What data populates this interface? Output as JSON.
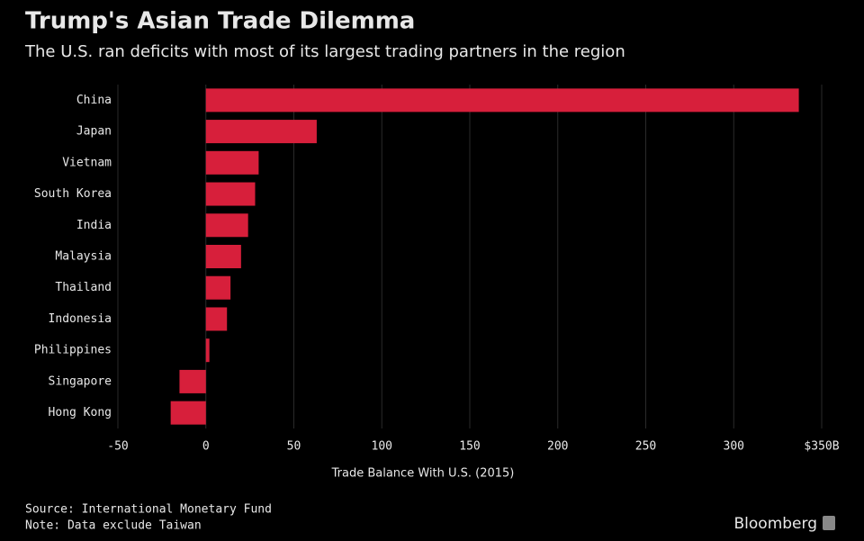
{
  "chart_data": {
    "type": "barh",
    "title": "Trump's Asian Trade Dilemma",
    "subtitle": "The U.S. ran deficits with most of its largest trading partners in the region",
    "categories": [
      "China",
      "Japan",
      "Vietnam",
      "South Korea",
      "India",
      "Malaysia",
      "Thailand",
      "Indonesia",
      "Philippines",
      "Singapore",
      "Hong Kong"
    ],
    "values": [
      337,
      63,
      30,
      28,
      24,
      20,
      14,
      12,
      2,
      -15,
      -20
    ],
    "color": "#d71f3b",
    "xlim": [
      -50,
      350
    ],
    "xticks": [
      -50,
      0,
      50,
      100,
      150,
      200,
      250,
      300,
      {
        "value": 350,
        "label": "$350B"
      }
    ],
    "xlabel": "Trade Balance With U.S. (2015)",
    "grid": true,
    "source": "Source: International Monetary Fund",
    "note": "Note: Data exclude Taiwan",
    "credit": "Bloomberg"
  }
}
